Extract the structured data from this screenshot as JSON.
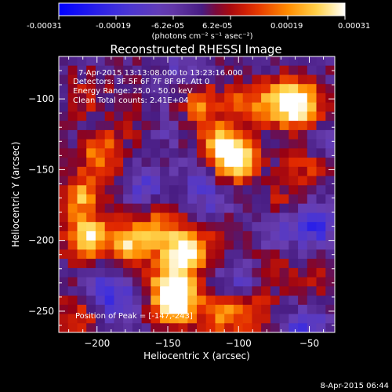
{
  "colorbar": {
    "ticks": [
      "-0.00031",
      "-0.00019",
      "-6.2e-05",
      "6.2e-05",
      "0.00019",
      "0.00031"
    ],
    "unit_label": "(photons cm⁻² s⁻¹ asec⁻²)",
    "colors": [
      "#0000ff",
      "#4a34d8",
      "#6a3fb0",
      "#50208a",
      "#a00010",
      "#e43000",
      "#ff9000",
      "#ffd850",
      "#ffffff"
    ]
  },
  "annotations": {
    "time_range": "7-Apr-2015 13:13:08.000 to 13:23:16.000",
    "detectors": "Detectors: 3F 5F 6F 7F 8F 9F, Att 0",
    "energy_range": "Energy Range: 25.0 - 50.0 keV",
    "clean_counts": "Clean     Total counts: 2.41E+04",
    "peak_position": "Position of Peak = [-147,-243]"
  },
  "footer_date": "8-Apr-2015 06:44",
  "chart_data": {
    "type": "heatmap",
    "title": "Reconstructed RHESSI Image",
    "xlabel": "Heliocentric X (arcsec)",
    "ylabel": "Heliocentric Y (arcsec)",
    "xlim": [
      -227,
      -32
    ],
    "ylim": [
      -265,
      -70
    ],
    "xticks": [
      -200,
      -150,
      -100,
      -50
    ],
    "yticks": [
      -100,
      -150,
      -200,
      -250
    ],
    "colorscale_range": [
      -0.00031,
      0.00031
    ],
    "peak": [
      -147,
      -243
    ],
    "grid": false,
    "bright_regions": [
      {
        "x": -210,
        "y": -195,
        "value": 0.00028
      },
      {
        "x": -215,
        "y": -165,
        "value": 0.00022
      },
      {
        "x": -200,
        "y": -135,
        "value": 0.00018
      },
      {
        "x": -180,
        "y": -200,
        "value": 0.00025
      },
      {
        "x": -160,
        "y": -185,
        "value": 0.00015
      },
      {
        "x": -145,
        "y": -205,
        "value": 0.00024
      },
      {
        "x": -150,
        "y": -228,
        "value": 0.00027
      },
      {
        "x": -147,
        "y": -243,
        "value": 0.00031
      },
      {
        "x": -135,
        "y": -200,
        "value": 0.00012
      },
      {
        "x": -115,
        "y": -130,
        "value": 0.00022
      },
      {
        "x": -105,
        "y": -140,
        "value": 0.00028
      },
      {
        "x": -130,
        "y": -100,
        "value": 0.00018
      },
      {
        "x": -95,
        "y": -100,
        "value": 0.00016
      },
      {
        "x": -60,
        "y": -100,
        "value": 0.00026
      },
      {
        "x": -70,
        "y": -100,
        "value": 0.0002
      },
      {
        "x": -55,
        "y": -145,
        "value": 0.00012
      },
      {
        "x": -170,
        "y": -115,
        "value": 0.0001
      },
      {
        "x": -95,
        "y": -245,
        "value": 0.00014
      },
      {
        "x": -115,
        "y": -250,
        "value": 0.00016
      },
      {
        "x": -80,
        "y": -215,
        "value": 0.0001
      },
      {
        "x": -215,
        "y": -250,
        "value": 0.00012
      },
      {
        "x": -210,
        "y": -95,
        "value": 8e-05
      },
      {
        "x": -110,
        "y": -190,
        "value": 8e-05
      },
      {
        "x": -75,
        "y": -170,
        "value": 8e-05
      },
      {
        "x": -45,
        "y": -230,
        "value": 8e-05
      }
    ],
    "dark_regions": [
      {
        "x": -170,
        "y": -160,
        "value": -0.00012
      },
      {
        "x": -130,
        "y": -155,
        "value": -9e-05
      },
      {
        "x": -50,
        "y": -185,
        "value": -0.0002
      },
      {
        "x": -80,
        "y": -190,
        "value": -0.0001
      },
      {
        "x": -55,
        "y": -260,
        "value": -0.00016
      },
      {
        "x": -120,
        "y": -175,
        "value": -8e-05
      },
      {
        "x": -160,
        "y": -115,
        "value": -0.0001
      },
      {
        "x": -190,
        "y": -240,
        "value": -0.00014
      },
      {
        "x": -100,
        "y": -225,
        "value": -0.00012
      },
      {
        "x": -140,
        "y": -80,
        "value": -0.0001
      },
      {
        "x": -40,
        "y": -130,
        "value": -8e-05
      },
      {
        "x": -200,
        "y": -225,
        "value": -8e-05
      }
    ]
  }
}
